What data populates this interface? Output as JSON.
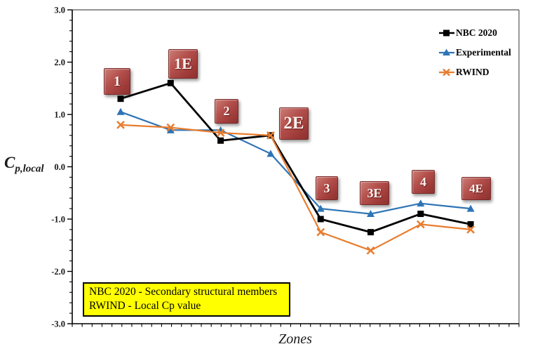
{
  "chart_data": {
    "type": "line",
    "categories": [
      "1",
      "1E",
      "2",
      "2E",
      "3",
      "3E",
      "4",
      "4E"
    ],
    "series": [
      {
        "name": "NBC 2020",
        "color": "#000000",
        "marker": "square",
        "values": [
          1.3,
          1.6,
          0.5,
          0.6,
          -1.0,
          -1.25,
          -0.9,
          -1.1
        ]
      },
      {
        "name": "Experimental",
        "color": "#2E74B5",
        "marker": "triangle",
        "values": [
          1.05,
          0.7,
          0.7,
          0.25,
          -0.8,
          -0.9,
          -0.7,
          -0.8
        ]
      },
      {
        "name": "RWIND",
        "color": "#E87D2E",
        "marker": "x",
        "values": [
          0.8,
          0.75,
          0.65,
          0.6,
          -1.25,
          -1.6,
          -1.1,
          -1.2
        ]
      }
    ],
    "title": "",
    "xlabel": "Zones",
    "ylabel": "Cp,local",
    "ylim": [
      -3.0,
      3.0
    ],
    "y_major_step": 1.0,
    "y_minor_step": 0.2,
    "y_tick_labels": [
      "3.0",
      "2.0",
      "1.0",
      "0.0",
      "-1.0",
      "-2.0",
      "-3.0"
    ],
    "grid": false,
    "legend_position": "top-right-inside"
  },
  "ylabel_parts": {
    "base": "C",
    "sub": "p,local"
  },
  "annotations": {
    "zone_labels": [
      "1",
      "1E",
      "2",
      "2E",
      "3",
      "3E",
      "4",
      "4E"
    ],
    "zone_label_bg": "#A03C3A",
    "zone_label_text_color": "#FFFFFF"
  },
  "note_box": {
    "line1": "NBC 2020 - Secondary structural members",
    "line2": "RWIND - Local Cp value",
    "bg_color": "#FFFF00"
  },
  "colors": {
    "nbc": "#000000",
    "experimental": "#2E74B5",
    "rwind": "#E87D2E",
    "plot_border": "#6E6E6E",
    "axis": "#000000"
  }
}
